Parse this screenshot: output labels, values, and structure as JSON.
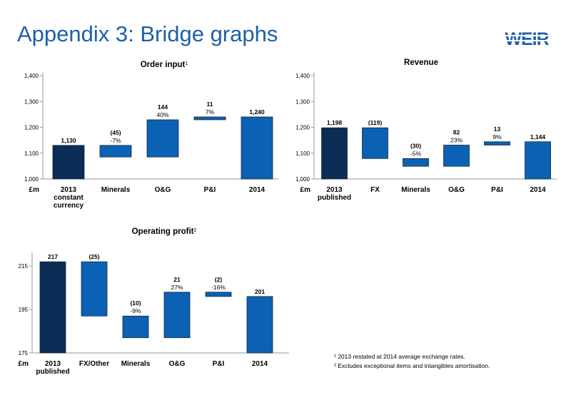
{
  "header": {
    "title": "Appendix 3: Bridge graphs",
    "logo_text": "WEIR",
    "logo_color": "#1f5fa8"
  },
  "colors": {
    "start": "#0b2c55",
    "step": "#0b61b3",
    "axis": "#999999"
  },
  "chart_data": [
    {
      "type": "bar",
      "subtype": "waterfall",
      "title": "Order input",
      "title_sup": "1",
      "ylim": [
        1000,
        1400
      ],
      "yticks": [
        "1,000",
        "1,100",
        "1,200",
        "1,300",
        "1,400"
      ],
      "unit_label": "£m",
      "bars": [
        {
          "category": "2013 constant currency",
          "label_lines": [
            "2013",
            "constant",
            "currency"
          ],
          "low": 1000,
          "high": 1130,
          "kind": "start",
          "value_label": "1,130",
          "pct_label": ""
        },
        {
          "category": "Minerals",
          "label_lines": [
            "Minerals"
          ],
          "low": 1085,
          "high": 1130,
          "kind": "step",
          "value_label": "(45)",
          "pct_label": "-7%"
        },
        {
          "category": "O&G",
          "label_lines": [
            "O&G"
          ],
          "low": 1085,
          "high": 1229,
          "kind": "step",
          "value_label": "144",
          "pct_label": "40%"
        },
        {
          "category": "P&I",
          "label_lines": [
            "P&I"
          ],
          "low": 1229,
          "high": 1240,
          "kind": "step",
          "value_label": "11",
          "pct_label": "7%"
        },
        {
          "category": "2014",
          "label_lines": [
            "2014"
          ],
          "low": 1000,
          "high": 1240,
          "kind": "end",
          "value_label": "1,240",
          "pct_label": ""
        }
      ]
    },
    {
      "type": "bar",
      "subtype": "waterfall",
      "title": "Revenue",
      "title_sup": "",
      "ylim": [
        1000,
        1400
      ],
      "yticks": [
        "1,000",
        "1,100",
        "1,200",
        "1,300",
        "1,400"
      ],
      "unit_label": "£m",
      "bars": [
        {
          "category": "2013 published",
          "label_lines": [
            "2013",
            "published"
          ],
          "low": 1000,
          "high": 1198,
          "kind": "start",
          "value_label": "1,198",
          "pct_label": ""
        },
        {
          "category": "FX",
          "label_lines": [
            "FX"
          ],
          "low": 1079,
          "high": 1198,
          "kind": "step",
          "value_label": "(119)",
          "pct_label": ""
        },
        {
          "category": "Minerals",
          "label_lines": [
            "Minerals"
          ],
          "low": 1049,
          "high": 1079,
          "kind": "step",
          "value_label": "(30)",
          "pct_label": "-5%"
        },
        {
          "category": "O&G",
          "label_lines": [
            "O&G"
          ],
          "low": 1049,
          "high": 1131,
          "kind": "step",
          "value_label": "82",
          "pct_label": "23%"
        },
        {
          "category": "P&I",
          "label_lines": [
            "P&I"
          ],
          "low": 1131,
          "high": 1144,
          "kind": "step",
          "value_label": "13",
          "pct_label": "9%"
        },
        {
          "category": "2014",
          "label_lines": [
            "2014"
          ],
          "low": 1000,
          "high": 1144,
          "kind": "end",
          "value_label": "1,144",
          "pct_label": ""
        }
      ]
    },
    {
      "type": "bar",
      "subtype": "waterfall",
      "title": "Operating profit",
      "title_sup": "2",
      "ylim": [
        175,
        220
      ],
      "yticks": [
        "175",
        "195",
        "215"
      ],
      "ytick_values": [
        175,
        195,
        215
      ],
      "unit_label": "£m",
      "bars": [
        {
          "category": "2013 published",
          "label_lines": [
            "2013",
            "published"
          ],
          "low": 175,
          "high": 217,
          "kind": "start",
          "value_label": "217",
          "pct_label": ""
        },
        {
          "category": "FX/Other",
          "label_lines": [
            "FX/Other"
          ],
          "low": 192,
          "high": 217,
          "kind": "step",
          "value_label": "(25)",
          "pct_label": ""
        },
        {
          "category": "Minerals",
          "label_lines": [
            "Minerals"
          ],
          "low": 182,
          "high": 192,
          "kind": "step",
          "value_label": "(10)",
          "pct_label": "-9%"
        },
        {
          "category": "O&G",
          "label_lines": [
            "O&G"
          ],
          "low": 182,
          "high": 203,
          "kind": "step",
          "value_label": "21",
          "pct_label": "27%"
        },
        {
          "category": "P&I",
          "label_lines": [
            "P&I"
          ],
          "low": 201,
          "high": 203,
          "kind": "step",
          "value_label": "(2)",
          "pct_label": "-16%"
        },
        {
          "category": "2014",
          "label_lines": [
            "2014"
          ],
          "low": 175,
          "high": 201,
          "kind": "end",
          "value_label": "201",
          "pct_label": ""
        }
      ]
    }
  ],
  "footnotes": [
    "¹ 2013 restated at 2014 average exchange rates.",
    "² Excludes exceptional items and intangibles amortisation."
  ]
}
